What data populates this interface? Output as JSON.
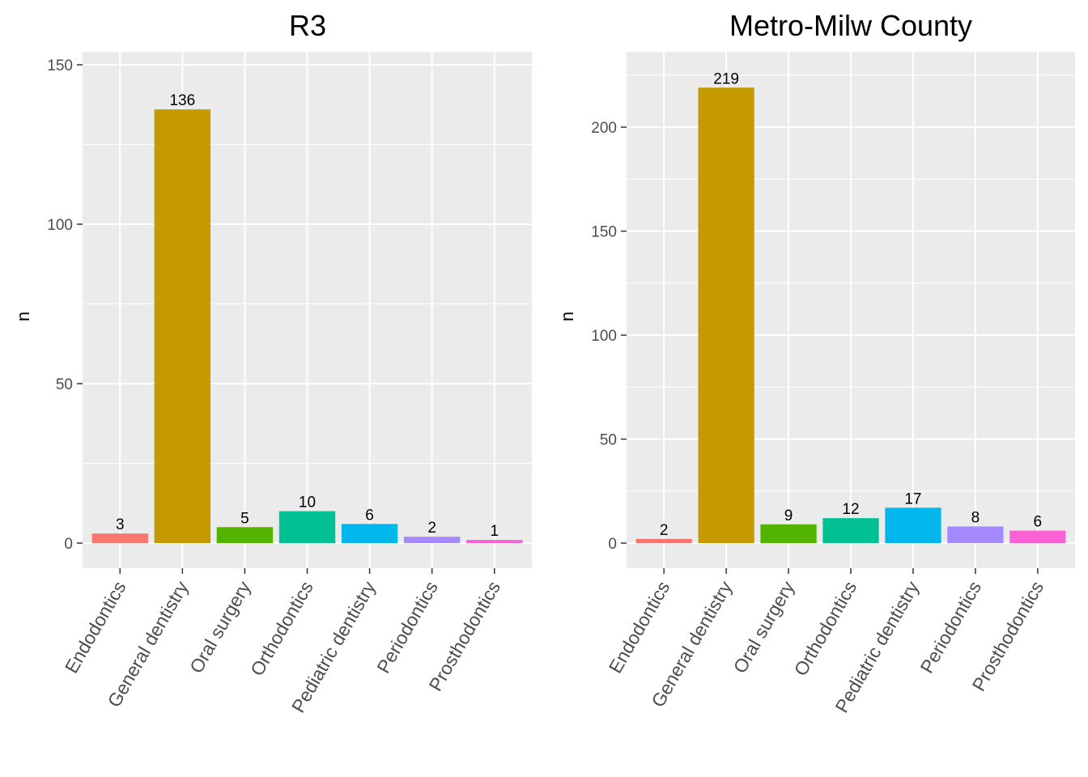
{
  "chart_data": [
    {
      "type": "bar",
      "title": "R3",
      "ylabel": "n",
      "xlabel": "",
      "ylim": [
        -7.5,
        150
      ],
      "yticks": [
        0,
        50,
        100,
        150
      ],
      "categories": [
        "Endodontics",
        "General dentistry",
        "Oral surgery",
        "Orthodontics",
        "Pediatric dentistry",
        "Periodontics",
        "Prosthodontics"
      ],
      "values": [
        3,
        136,
        5,
        10,
        6,
        2,
        1
      ],
      "grid": true,
      "legend": "none"
    },
    {
      "type": "bar",
      "title": "Metro-Milw County",
      "ylabel": "n",
      "xlabel": "",
      "ylim": [
        -11,
        230
      ],
      "yticks": [
        0,
        50,
        100,
        150,
        200
      ],
      "categories": [
        "Endodontics",
        "General dentistry",
        "Oral surgery",
        "Orthodontics",
        "Pediatric dentistry",
        "Periodontics",
        "Prosthodontics"
      ],
      "values": [
        2,
        219,
        9,
        12,
        17,
        8,
        6
      ],
      "grid": true,
      "legend": "none"
    }
  ],
  "colors": [
    "#F8766D",
    "#C49A00",
    "#53B400",
    "#00C094",
    "#00B6EB",
    "#A58AFF",
    "#FB61D7"
  ],
  "panel_background": "#EBEBEB",
  "grid_color": "#FFFFFF"
}
